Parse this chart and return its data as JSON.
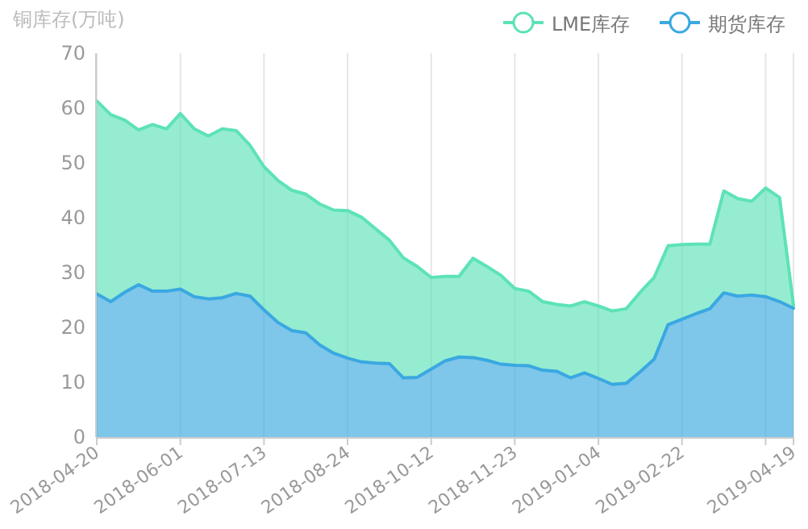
{
  "chart_data": {
    "type": "area",
    "stacked": true,
    "ylabel": "铜库存(万吨)",
    "categories": [
      "2018-04-20",
      null,
      null,
      null,
      null,
      null,
      "2018-06-01",
      null,
      null,
      null,
      null,
      null,
      "2018-07-13",
      null,
      null,
      null,
      null,
      null,
      "2018-08-24",
      null,
      null,
      null,
      null,
      null,
      "2018-10-12",
      null,
      null,
      null,
      null,
      null,
      "2018-11-23",
      null,
      null,
      null,
      null,
      null,
      "2019-01-04",
      null,
      null,
      null,
      null,
      null,
      "2019-02-22",
      null,
      null,
      null,
      null,
      null,
      null,
      null,
      "2019-04-19"
    ],
    "series": [
      {
        "name": "期货库存",
        "color": "#3aa8e1",
        "values": [
          26.1,
          24.7,
          26.4,
          27.8,
          26.6,
          26.6,
          27.0,
          25.6,
          25.2,
          25.4,
          26.2,
          25.7,
          23.2,
          20.9,
          19.4,
          19.0,
          16.8,
          15.3,
          14.4,
          13.7,
          13.5,
          13.4,
          10.8,
          10.9,
          12.4,
          13.9,
          14.6,
          14.5,
          14.0,
          13.3,
          13.1,
          13.0,
          12.2,
          12.0,
          10.8,
          11.7,
          10.7,
          9.6,
          9.8,
          11.9,
          14.2,
          20.5,
          21.5,
          22.5,
          23.4,
          26.3,
          25.7,
          25.9,
          25.6,
          24.7,
          23.5
        ]
      },
      {
        "name": "LME库存",
        "color": "#5de2b8",
        "values": [
          35.2,
          34.1,
          31.4,
          28.2,
          30.4,
          29.6,
          32.0,
          30.6,
          29.7,
          30.8,
          29.7,
          27.5,
          26.1,
          25.9,
          25.6,
          25.3,
          25.7,
          26.1,
          26.9,
          26.4,
          24.5,
          22.5,
          21.9,
          20.2,
          16.7,
          15.4,
          14.7,
          18.1,
          17.1,
          16.2,
          14.0,
          13.6,
          12.5,
          12.2,
          13.1,
          13.0,
          13.2,
          13.4,
          13.6,
          14.5,
          14.9,
          14.4,
          13.6,
          12.7,
          11.8,
          18.6,
          17.8,
          17.1,
          19.8,
          19.0,
          0.5
        ]
      }
    ],
    "ylim": [
      0,
      70
    ],
    "yticks": [
      0,
      10,
      20,
      30,
      40,
      50,
      60,
      70
    ],
    "grid": "x",
    "legend": "top right"
  }
}
